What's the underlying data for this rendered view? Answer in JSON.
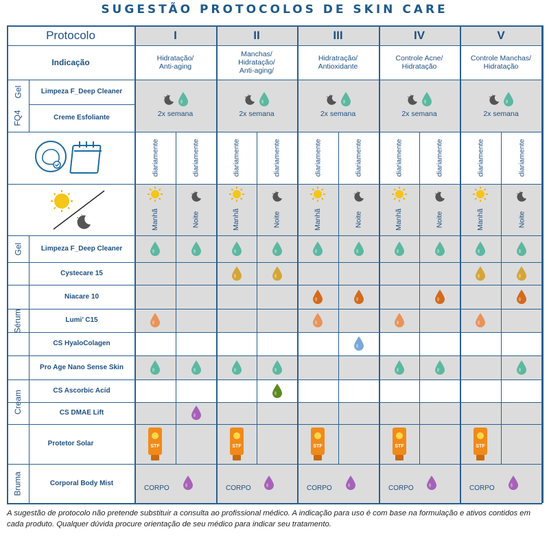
{
  "title": "SUGESTÃO PROTOCOLOS DE SKIN CARE",
  "header_label": "Protocolo",
  "indication_label": "Indicação",
  "protocols": [
    {
      "numeral": "I",
      "indication": [
        "Hidratação/",
        "Anti-aging"
      ]
    },
    {
      "numeral": "II",
      "indication": [
        "Manchas/",
        "Hidratação/",
        "Anti-aging/"
      ]
    },
    {
      "numeral": "III",
      "indication": [
        "Hidratração/",
        "Antioxidante"
      ]
    },
    {
      "numeral": "IV",
      "indication": [
        "Controle Acne/",
        "Hidratação"
      ]
    },
    {
      "numeral": "V",
      "indication": [
        "Controle Manchas/",
        "Hidratação"
      ]
    }
  ],
  "gel_fq4": {
    "group_gel": "Gel",
    "group_fq4": "FQ4",
    "products": [
      "Limpeza  F_Deep Cleaner",
      "Creme Esfoliante"
    ],
    "frequency": "2x semana"
  },
  "frequency_label": "diariamente",
  "time_labels": {
    "morning": "Manhã",
    "night": "Noite"
  },
  "groups": {
    "gel": "Gel",
    "serum": "Sérum",
    "cream": "Cream",
    "bruma": "Bruma"
  },
  "products": [
    {
      "group": "gel",
      "name": "Limpeza  F_Deep Cleaner"
    },
    {
      "group": "serum",
      "name": "Cystecare 15"
    },
    {
      "group": "serum",
      "name": "Niacare 10"
    },
    {
      "group": "serum",
      "name": "Lumi’ C15"
    },
    {
      "group": "serum",
      "name": "CS HyaloColagen"
    },
    {
      "group": "serum",
      "name": "Pro Age Nano Sense Skin"
    },
    {
      "group": "cream",
      "name": "CS Ascorbic Acid"
    },
    {
      "group": "cream",
      "name": "CS DMAE Lift"
    },
    {
      "group": "none",
      "name": "Protetor Solar"
    },
    {
      "group": "bruma",
      "name": "Corporal Body Mist"
    }
  ],
  "sunscreen_label": "STF",
  "body_label": "CORPO",
  "colors": {
    "teal": "#5cb8a0",
    "gold": "#d4a537",
    "orange": "#d46a1c",
    "peach": "#e8935a",
    "blue": "#7aa8d8",
    "green": "#5e8a22",
    "purple": "#a661b8",
    "grid": "#2a5f8f",
    "shade": "#dcdcdc"
  },
  "disclaimer": "A sugestão de protocolo não pretende substituir a consulta ao profissional médico. A indicação para uso é com base  na formulação e ativos contidos em cada produto. Qualquer dúvida procure orientação de seu médico para indicar seu tratamento."
}
